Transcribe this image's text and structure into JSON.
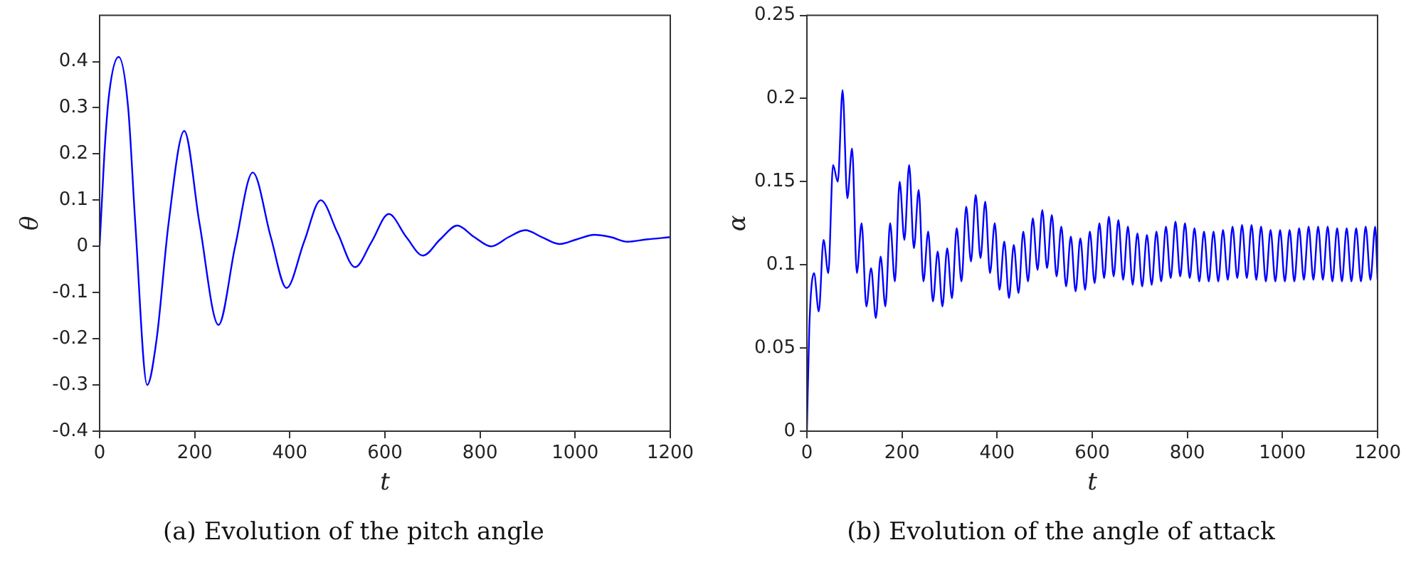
{
  "chart_data": [
    {
      "type": "line",
      "xlabel": "t",
      "ylabel": "θ",
      "annotations": [
        "(a) Evolution of the pitch angle"
      ],
      "xlim": [
        0,
        1200
      ],
      "xticks": [
        0,
        200,
        400,
        600,
        800,
        1000,
        1200
      ],
      "ylim": [
        -0.4,
        0.5
      ],
      "yticks": [
        -0.4,
        -0.3,
        -0.2,
        -0.1,
        0,
        0.1,
        0.2,
        0.3,
        0.4
      ],
      "grid": false,
      "legend": false,
      "series": [
        {
          "color": "#0000ff",
          "x": [
            0,
            10,
            20,
            40,
            60,
            75,
            100,
            120,
            145,
            178,
            210,
            250,
            285,
            322,
            360,
            393,
            430,
            465,
            500,
            537,
            572,
            608,
            645,
            680,
            716,
            752,
            788,
            823,
            860,
            895,
            930,
            967,
            1003,
            1040,
            1075,
            1110,
            1150,
            1200
          ],
          "values": [
            0,
            0.2,
            0.33,
            0.41,
            0.3,
            0.05,
            -0.3,
            -0.2,
            0.05,
            0.25,
            0.05,
            -0.17,
            0,
            0.16,
            0.02,
            -0.09,
            0.01,
            0.1,
            0.03,
            -0.045,
            0.01,
            0.07,
            0.02,
            -0.02,
            0.015,
            0.045,
            0.02,
            0,
            0.02,
            0.035,
            0.02,
            0.005,
            0.015,
            0.025,
            0.02,
            0.01,
            0.015,
            0.02
          ]
        }
      ]
    },
    {
      "type": "line",
      "xlabel": "t",
      "ylabel": "α",
      "annotations": [
        "(b) Evolution of the angle of attack"
      ],
      "xlim": [
        0,
        1200
      ],
      "xticks": [
        0,
        200,
        400,
        600,
        800,
        1000,
        1200
      ],
      "ylim": [
        0,
        0.25
      ],
      "yticks": [
        0,
        0.05,
        0.1,
        0.15,
        0.2,
        0.25
      ],
      "grid": false,
      "legend": false,
      "series": [
        {
          "color": "#0000ff",
          "x": [
            0,
            5,
            15,
            25,
            35,
            45,
            55,
            65,
            75,
            85,
            95,
            105,
            115,
            125,
            135,
            145,
            155,
            165,
            175,
            185,
            195,
            205,
            215,
            225,
            235,
            245,
            255,
            265,
            275,
            285,
            295,
            305,
            315,
            325,
            335,
            345,
            355,
            365,
            375,
            385,
            395,
            405,
            415,
            425,
            435,
            445,
            455,
            465,
            475,
            485,
            495,
            505,
            515,
            525,
            535,
            545,
            555,
            565,
            575,
            585,
            595,
            605,
            615,
            625,
            635,
            645,
            655,
            665,
            675,
            685,
            695,
            705,
            715,
            725,
            735,
            745,
            755,
            765,
            775,
            785,
            795,
            805,
            815,
            825,
            835,
            845,
            855,
            865,
            875,
            885,
            895,
            905,
            915,
            925,
            935,
            945,
            955,
            965,
            975,
            985,
            995,
            1005,
            1015,
            1025,
            1035,
            1045,
            1055,
            1065,
            1075,
            1085,
            1095,
            1105,
            1115,
            1125,
            1135,
            1145,
            1155,
            1165,
            1175,
            1185,
            1195,
            1200
          ],
          "values": [
            0,
            0.062,
            0.095,
            0.072,
            0.115,
            0.095,
            0.16,
            0.15,
            0.205,
            0.14,
            0.17,
            0.095,
            0.125,
            0.075,
            0.098,
            0.068,
            0.105,
            0.075,
            0.125,
            0.09,
            0.15,
            0.115,
            0.16,
            0.11,
            0.145,
            0.09,
            0.12,
            0.078,
            0.108,
            0.075,
            0.11,
            0.08,
            0.122,
            0.09,
            0.135,
            0.102,
            0.142,
            0.104,
            0.138,
            0.095,
            0.125,
            0.085,
            0.114,
            0.08,
            0.112,
            0.083,
            0.12,
            0.09,
            0.128,
            0.097,
            0.133,
            0.098,
            0.13,
            0.093,
            0.123,
            0.087,
            0.117,
            0.084,
            0.116,
            0.085,
            0.12,
            0.089,
            0.125,
            0.092,
            0.129,
            0.093,
            0.127,
            0.091,
            0.123,
            0.088,
            0.119,
            0.087,
            0.118,
            0.088,
            0.12,
            0.09,
            0.123,
            0.092,
            0.126,
            0.093,
            0.125,
            0.092,
            0.122,
            0.09,
            0.12,
            0.09,
            0.12,
            0.09,
            0.121,
            0.091,
            0.123,
            0.092,
            0.124,
            0.092,
            0.124,
            0.091,
            0.123,
            0.09,
            0.121,
            0.09,
            0.121,
            0.09,
            0.121,
            0.09,
            0.122,
            0.091,
            0.123,
            0.091,
            0.123,
            0.091,
            0.123,
            0.09,
            0.122,
            0.09,
            0.122,
            0.09,
            0.122,
            0.09,
            0.123,
            0.091,
            0.123,
            0.091
          ]
        }
      ]
    }
  ]
}
